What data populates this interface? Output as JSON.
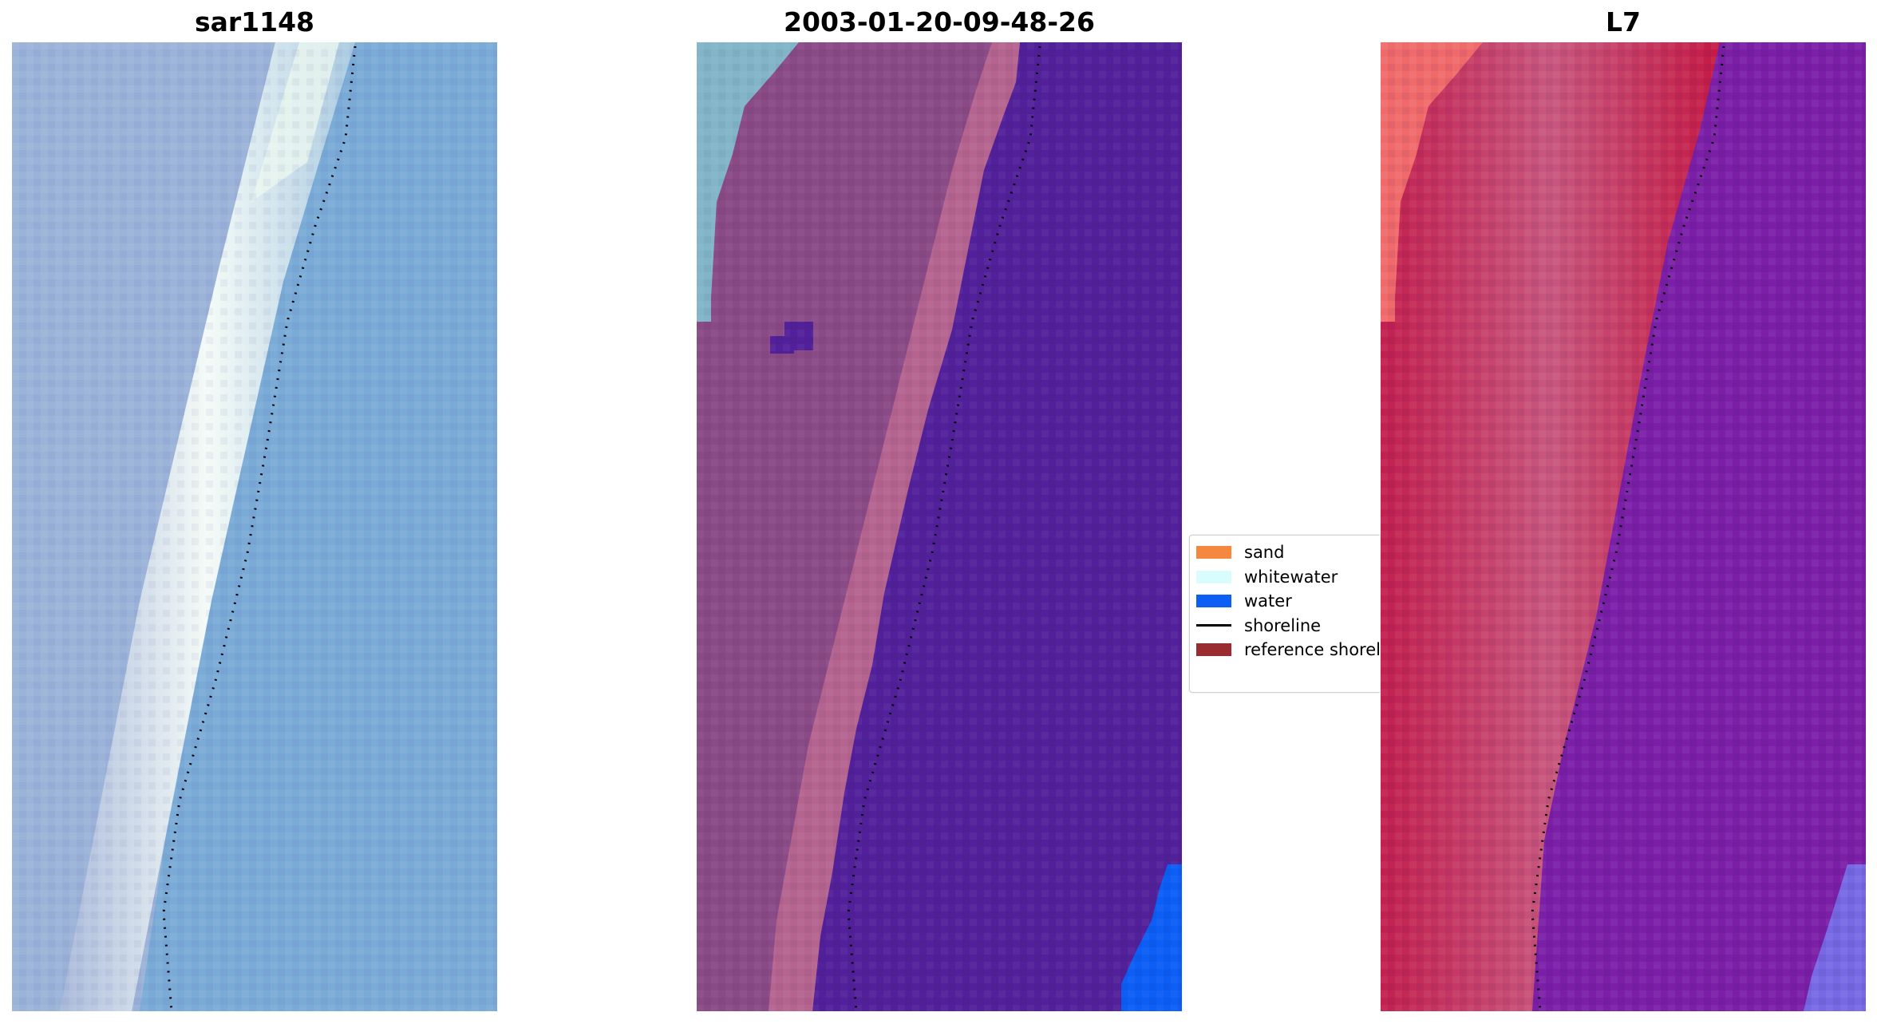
{
  "panels": [
    {
      "title": "sar1148"
    },
    {
      "title": "2003-01-20-09-48-26"
    },
    {
      "title": "L7"
    }
  ],
  "legend": {
    "items": [
      {
        "label": "sand",
        "kind": "patch",
        "color": "#f5873f"
      },
      {
        "label": "whitewater",
        "kind": "patch",
        "color": "#d9fdfd"
      },
      {
        "label": "water",
        "kind": "patch",
        "color": "#0d5ef5"
      },
      {
        "label": "shoreline",
        "kind": "line",
        "color": "#000000"
      },
      {
        "label": "reference shoreline",
        "kind": "patch",
        "color": "#9a2b30"
      }
    ]
  },
  "colors": {
    "left_water": "#6fa7d6",
    "left_surf": "#e8f4f0",
    "mid_class_water": "#52209a",
    "mid_beach": "#8a4a86",
    "mid_beach_light": "#b4648f",
    "mid_sand_topleft": "#82b5c8",
    "mid_water_corner": "#0d5ef5",
    "right_water": "#7a1fa6",
    "right_land": "#c81e4e",
    "right_topleft": "#f06a6a"
  }
}
